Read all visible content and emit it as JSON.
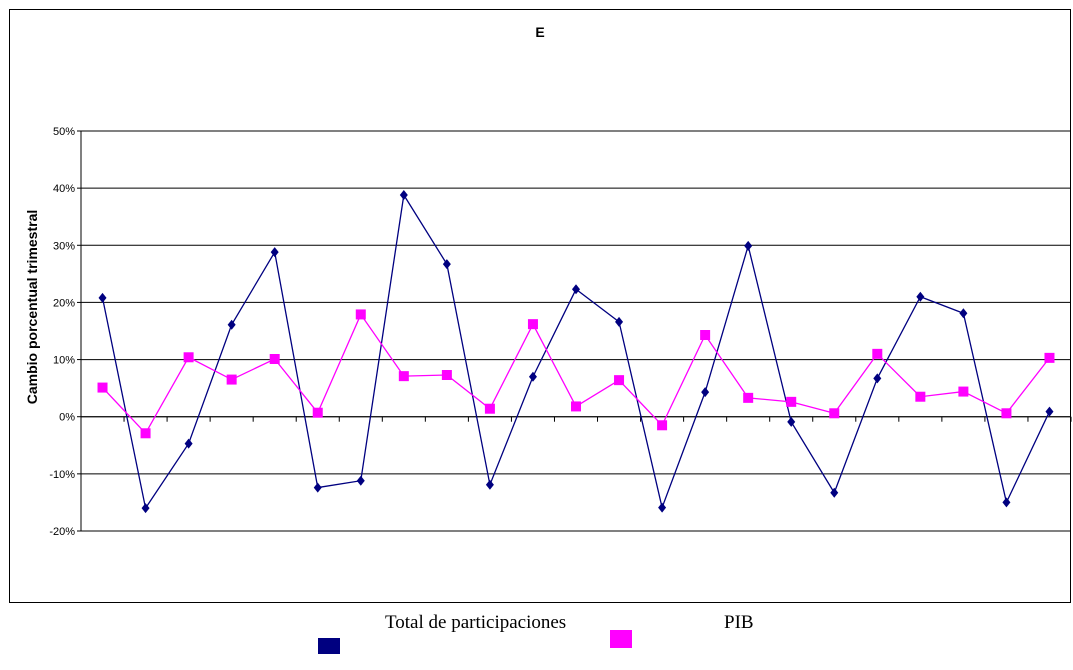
{
  "chart_data": {
    "type": "line",
    "title": "E",
    "xlabel": "",
    "ylabel": "Cambio porcentual trimestral",
    "ylim": [
      -20,
      50
    ],
    "yticks": [
      -20,
      -10,
      0,
      10,
      20,
      30,
      40,
      50
    ],
    "ytick_labels": [
      "-20%",
      "-10%",
      "0%",
      "10%",
      "20%",
      "30%",
      "40%",
      "50%"
    ],
    "grid": true,
    "legend_position": "bottom",
    "series": [
      {
        "name": "Total de participaciones",
        "color": "#000080",
        "marker": "diamond",
        "values": [
          20.8,
          -16.0,
          -4.7,
          16.1,
          28.8,
          -12.4,
          -11.2,
          38.8,
          26.7,
          -11.9,
          7.0,
          22.3,
          16.6,
          -15.9,
          4.3,
          29.9,
          -0.9,
          -13.3,
          6.7,
          21.0,
          18.1,
          -15.0,
          0.9
        ]
      },
      {
        "name": "PIB",
        "color": "#ff00ff",
        "marker": "square",
        "values": [
          5.1,
          -2.9,
          10.4,
          6.5,
          10.1,
          0.7,
          17.9,
          7.1,
          7.3,
          1.4,
          16.2,
          1.8,
          6.4,
          -1.5,
          14.3,
          3.3,
          2.6,
          0.6,
          11.0,
          3.5,
          4.4,
          0.6,
          10.3
        ]
      }
    ]
  }
}
